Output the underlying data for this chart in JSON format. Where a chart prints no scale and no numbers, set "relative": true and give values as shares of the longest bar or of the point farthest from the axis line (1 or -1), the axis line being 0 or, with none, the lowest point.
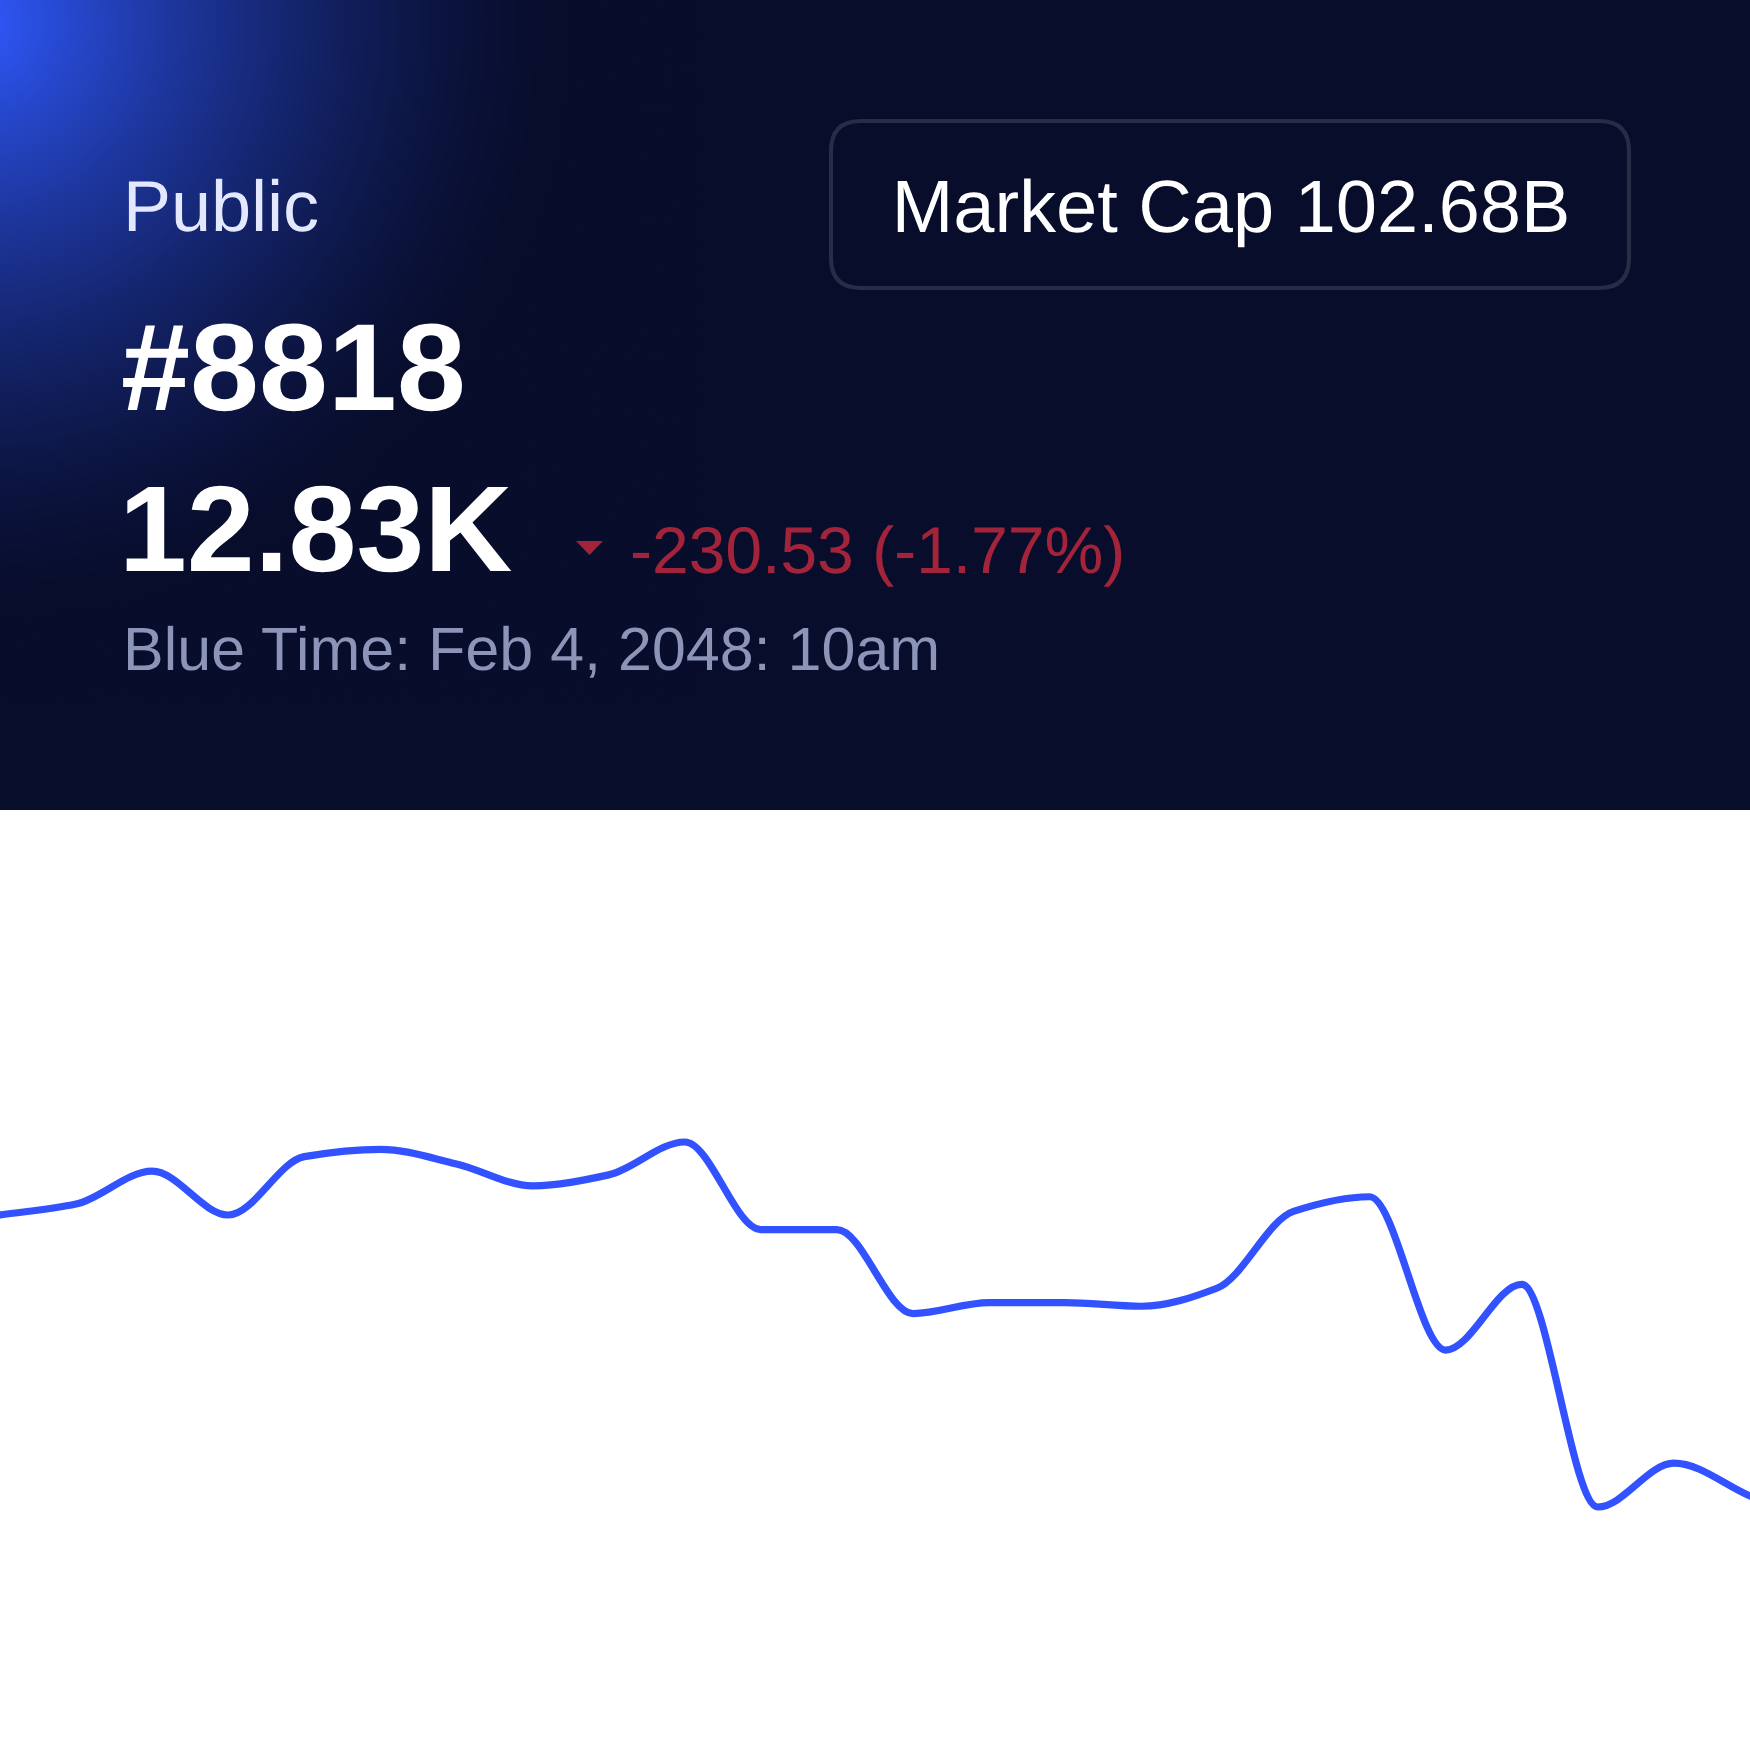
{
  "chart_data": {
    "type": "line",
    "title": "Public",
    "subtitle": "#8818",
    "annotations": [
      "12.83K",
      "-230.53 (-1.77%)",
      "Blue Time: Feb 4, 2048: 10am",
      "Market Cap 102.68B"
    ],
    "categories": [
      null,
      null,
      null,
      null,
      null,
      null,
      null,
      null,
      null,
      null,
      null,
      null,
      null,
      null,
      null,
      null,
      null,
      null,
      null,
      null,
      null,
      null,
      null,
      null
    ],
    "series": [
      {
        "color": "#3152fe",
        "values": [
          0.8,
          0.83,
          0.92,
          0.8,
          0.96,
          0.98,
          0.94,
          0.88,
          0.91,
          1.0,
          0.76,
          0.76,
          0.53,
          0.56,
          0.56,
          0.55,
          0.6,
          0.81,
          0.85,
          0.43,
          0.61,
          0.0,
          0.12,
          0.03
        ]
      }
    ],
    "relative": true,
    "line_style": "solid",
    "marker": "none",
    "tick_labels": false
  }
}
